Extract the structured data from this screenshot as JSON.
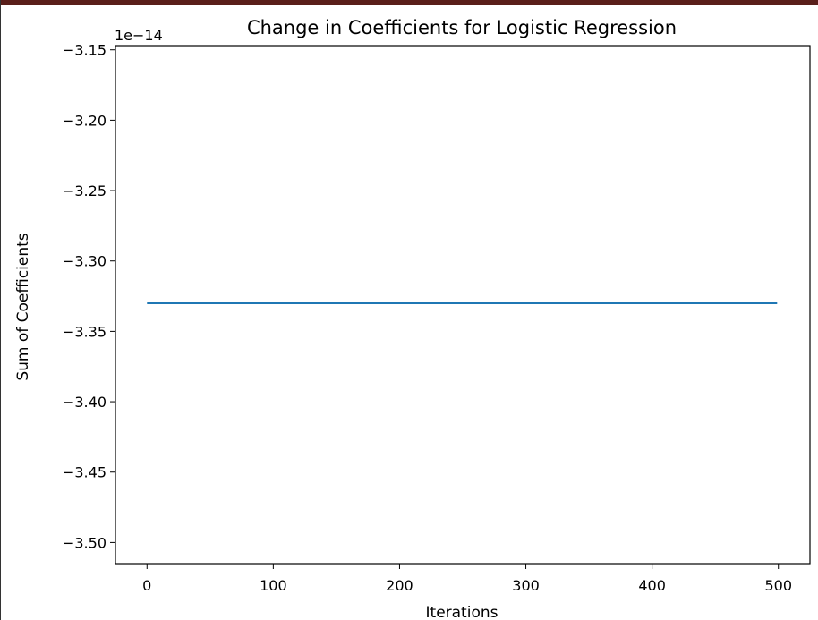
{
  "chart_data": {
    "type": "line",
    "title": "Change in Coefficients for Logistic Regression",
    "xlabel": "Iterations",
    "ylabel": "Sum of Coefficients",
    "y_offset_label": "1e−14",
    "xlim": [
      -25,
      525
    ],
    "ylim": [
      -3.515,
      -3.147
    ],
    "xticks": [
      0,
      100,
      200,
      300,
      400,
      500
    ],
    "xtick_labels": [
      "0",
      "100",
      "200",
      "300",
      "400",
      "500"
    ],
    "yticks": [
      -3.15,
      -3.2,
      -3.25,
      -3.3,
      -3.35,
      -3.4,
      -3.45,
      -3.5
    ],
    "ytick_labels": [
      "−3.15",
      "−3.20",
      "−3.25",
      "−3.30",
      "−3.35",
      "−3.40",
      "−3.45",
      "−3.50"
    ],
    "grid": false,
    "series": [
      {
        "x": [
          0,
          499
        ],
        "y": [
          -3.33,
          -3.33
        ],
        "color": "#1f77b4"
      }
    ]
  }
}
